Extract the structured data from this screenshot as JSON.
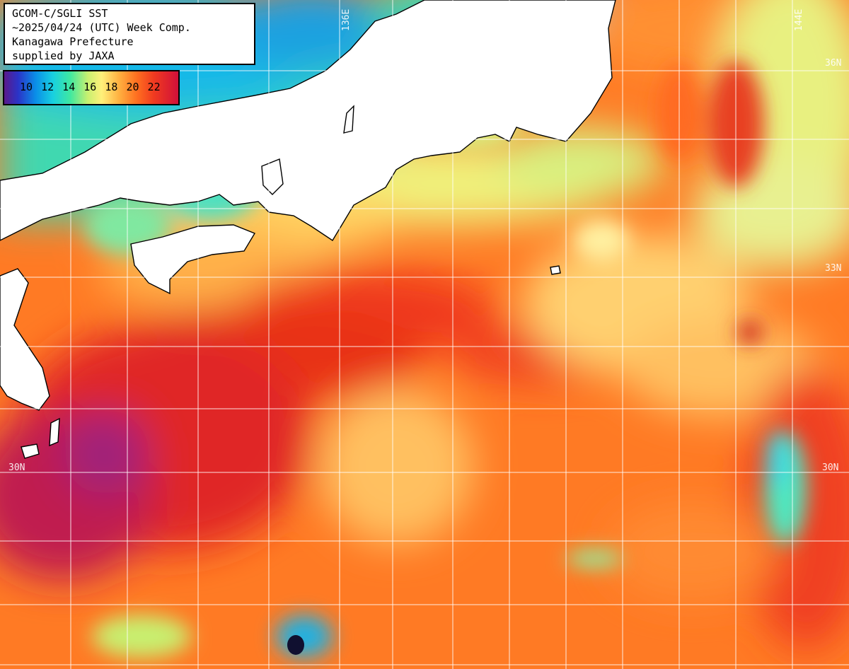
{
  "title": {
    "line1": "GCOM-C/SGLI SST",
    "line2": "~2025/04/24 (UTC) Week Comp.",
    "line3": "Kanagawa Prefecture",
    "line4": "supplied by JAXA"
  },
  "legend": {
    "labels": "10 12 14 16 18 20 22",
    "colors": [
      "#5a1a8a",
      "#2a34c8",
      "#0a8ee8",
      "#18d0e0",
      "#40e8a0",
      "#c8f070",
      "#fff07a",
      "#ffb040",
      "#ff7020",
      "#f03a20",
      "#d0103a"
    ]
  },
  "grid_labels": {
    "lon_136": "136E",
    "lon_144": "144E",
    "lat_36": "36N",
    "lat_33": "33N",
    "lat_30_left": "30N",
    "lat_30_right": "30N"
  },
  "colors": {
    "land": "#ffffff",
    "grid": "#ffffff",
    "coast": "#000000"
  }
}
